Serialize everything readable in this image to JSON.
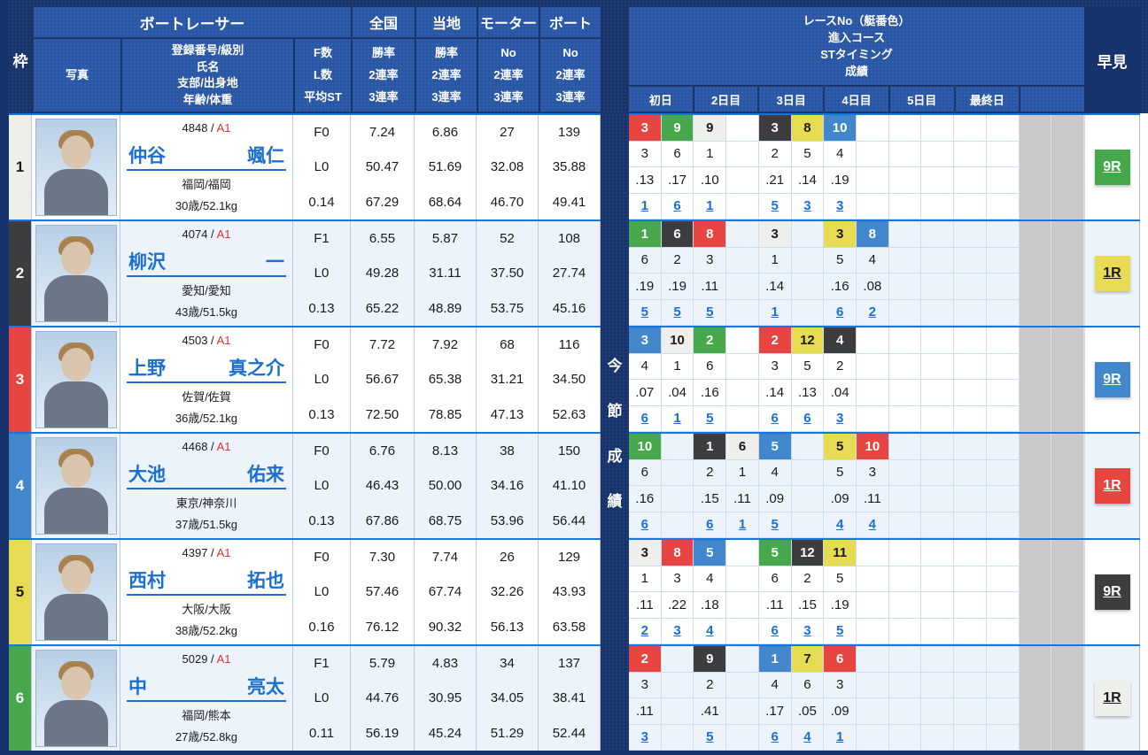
{
  "colors": {
    "navy": "#17336b",
    "header_blue": "#2a57a5",
    "row_alt": "#edf3fb",
    "separator_blue": "#1b74d8",
    "link_blue": "#1a6fd4",
    "gray_cell": "#c9c9c9",
    "class_red": "#e03030",
    "boat": {
      "white": {
        "bg": "#eeeeea",
        "fg": "#1a1a1a"
      },
      "black": {
        "bg": "#3d3d40",
        "fg": "#ffffff"
      },
      "red": {
        "bg": "#e64540",
        "fg": "#ffffff"
      },
      "blue": {
        "bg": "#4287cc",
        "fg": "#ffffff"
      },
      "yellow": {
        "bg": "#e6db52",
        "fg": "#1a1a1a"
      },
      "green": {
        "bg": "#46a84b",
        "fg": "#ffffff"
      }
    }
  },
  "header": {
    "waku": "枠",
    "boat_racer": "ボートレーサー",
    "photo": "写真",
    "racer_info_lines": [
      "登録番号/級別",
      "氏名",
      "支部/出身地",
      "年齢/体重"
    ],
    "fl_lines": [
      "F数",
      "L数",
      "平均ST"
    ],
    "stat_groups": [
      {
        "label": "全国",
        "sub": [
          "勝率",
          "2連率",
          "3連率"
        ]
      },
      {
        "label": "当地",
        "sub": [
          "勝率",
          "2連率",
          "3連率"
        ]
      },
      {
        "label": "モーター",
        "sub": [
          "No",
          "2連率",
          "3連率"
        ]
      },
      {
        "label": "ボート",
        "sub": [
          "No",
          "2連率",
          "3連率"
        ]
      }
    ],
    "race_info_lines": [
      "レースNo（艇番色）",
      "進入コース",
      "STタイミング",
      "成績"
    ],
    "days": [
      "初日",
      "2日目",
      "3日目",
      "4日目",
      "5日目",
      "最終日",
      ""
    ],
    "hayami": "早見",
    "session_label": "今節成績"
  },
  "racers": [
    {
      "waku": "1",
      "waku_color": "white",
      "reg_no": "4848",
      "class_label": "A1",
      "family": "仲谷",
      "given": "颯仁",
      "branch": "福岡/福岡",
      "age_weight": "30歳/52.1kg",
      "fl": [
        "F0",
        "L0",
        "0.14"
      ],
      "stats": [
        [
          "7.24",
          "50.47",
          "67.29"
        ],
        [
          "6.86",
          "51.69",
          "68.64"
        ],
        [
          "27",
          "32.08",
          "46.70"
        ],
        [
          "139",
          "35.88",
          "49.41"
        ]
      ],
      "cells": [
        {
          "race": "3",
          "color": "red",
          "course": "3",
          "st": ".13",
          "result": "1"
        },
        {
          "race": "9",
          "color": "green",
          "course": "6",
          "st": ".17",
          "result": "6"
        },
        {
          "race": "9",
          "color": "white",
          "course": "1",
          "st": ".10",
          "result": "1"
        },
        null,
        {
          "race": "3",
          "color": "black",
          "course": "2",
          "st": ".21",
          "result": "5"
        },
        {
          "race": "8",
          "color": "yellow",
          "course": "5",
          "st": ".14",
          "result": "3"
        },
        {
          "race": "10",
          "color": "blue",
          "course": "4",
          "st": ".19",
          "result": "3"
        },
        null,
        null,
        null,
        null,
        null
      ],
      "hayami": {
        "label": "9R",
        "color": "green"
      }
    },
    {
      "waku": "2",
      "waku_color": "black",
      "reg_no": "4074",
      "class_label": "A1",
      "family": "柳沢",
      "given": "一",
      "branch": "愛知/愛知",
      "age_weight": "43歳/51.5kg",
      "fl": [
        "F1",
        "L0",
        "0.13"
      ],
      "stats": [
        [
          "6.55",
          "49.28",
          "65.22"
        ],
        [
          "5.87",
          "31.11",
          "48.89"
        ],
        [
          "52",
          "37.50",
          "53.75"
        ],
        [
          "108",
          "27.74",
          "45.16"
        ]
      ],
      "cells": [
        {
          "race": "1",
          "color": "green",
          "course": "6",
          "st": ".19",
          "result": "5"
        },
        {
          "race": "6",
          "color": "black",
          "course": "2",
          "st": ".19",
          "result": "5"
        },
        {
          "race": "8",
          "color": "red",
          "course": "3",
          "st": ".11",
          "result": "5"
        },
        null,
        {
          "race": "3",
          "color": "white",
          "course": "1",
          "st": ".14",
          "result": "1"
        },
        null,
        {
          "race": "3",
          "color": "yellow",
          "course": "5",
          "st": ".16",
          "result": "6"
        },
        {
          "race": "8",
          "color": "blue",
          "course": "4",
          "st": ".08",
          "result": "2"
        },
        null,
        null,
        null,
        null
      ],
      "hayami": {
        "label": "1R",
        "color": "yellow"
      }
    },
    {
      "waku": "3",
      "waku_color": "red",
      "reg_no": "4503",
      "class_label": "A1",
      "family": "上野",
      "given": "真之介",
      "branch": "佐賀/佐賀",
      "age_weight": "36歳/52.1kg",
      "fl": [
        "F0",
        "L0",
        "0.13"
      ],
      "stats": [
        [
          "7.72",
          "56.67",
          "72.50"
        ],
        [
          "7.92",
          "65.38",
          "78.85"
        ],
        [
          "68",
          "31.21",
          "47.13"
        ],
        [
          "116",
          "34.50",
          "52.63"
        ]
      ],
      "cells": [
        {
          "race": "3",
          "color": "blue",
          "course": "4",
          "st": ".07",
          "result": "6"
        },
        {
          "race": "10",
          "color": "white",
          "course": "1",
          "st": ".04",
          "result": "1"
        },
        {
          "race": "2",
          "color": "green",
          "course": "6",
          "st": ".16",
          "result": "5"
        },
        null,
        {
          "race": "2",
          "color": "red",
          "course": "3",
          "st": ".14",
          "result": "6"
        },
        {
          "race": "12",
          "color": "yellow",
          "course": "5",
          "st": ".13",
          "result": "6"
        },
        {
          "race": "4",
          "color": "black",
          "course": "2",
          "st": ".04",
          "result": "3"
        },
        null,
        null,
        null,
        null,
        null
      ],
      "hayami": {
        "label": "9R",
        "color": "blue"
      }
    },
    {
      "waku": "4",
      "waku_color": "blue",
      "reg_no": "4468",
      "class_label": "A1",
      "family": "大池",
      "given": "佑来",
      "branch": "東京/神奈川",
      "age_weight": "37歳/51.5kg",
      "fl": [
        "F0",
        "L0",
        "0.13"
      ],
      "stats": [
        [
          "6.76",
          "46.43",
          "67.86"
        ],
        [
          "8.13",
          "50.00",
          "68.75"
        ],
        [
          "38",
          "34.16",
          "53.96"
        ],
        [
          "150",
          "41.10",
          "56.44"
        ]
      ],
      "cells": [
        {
          "race": "10",
          "color": "green",
          "course": "6",
          "st": ".16",
          "result": "6"
        },
        null,
        {
          "race": "1",
          "color": "black",
          "course": "2",
          "st": ".15",
          "result": "6"
        },
        {
          "race": "6",
          "color": "white",
          "course": "1",
          "st": ".11",
          "result": "1"
        },
        {
          "race": "5",
          "color": "blue",
          "course": "4",
          "st": ".09",
          "result": "5"
        },
        null,
        {
          "race": "5",
          "color": "yellow",
          "course": "5",
          "st": ".09",
          "result": "4"
        },
        {
          "race": "10",
          "color": "red",
          "course": "3",
          "st": ".11",
          "result": "4"
        },
        null,
        null,
        null,
        null
      ],
      "hayami": {
        "label": "1R",
        "color": "red"
      }
    },
    {
      "waku": "5",
      "waku_color": "yellow",
      "reg_no": "4397",
      "class_label": "A1",
      "family": "西村",
      "given": "拓也",
      "branch": "大阪/大阪",
      "age_weight": "38歳/52.2kg",
      "fl": [
        "F0",
        "L0",
        "0.16"
      ],
      "stats": [
        [
          "7.30",
          "57.46",
          "76.12"
        ],
        [
          "7.74",
          "67.74",
          "90.32"
        ],
        [
          "26",
          "32.26",
          "56.13"
        ],
        [
          "129",
          "43.93",
          "63.58"
        ]
      ],
      "cells": [
        {
          "race": "3",
          "color": "white",
          "course": "1",
          "st": ".11",
          "result": "2"
        },
        {
          "race": "8",
          "color": "red",
          "course": "3",
          "st": ".22",
          "result": "3"
        },
        {
          "race": "5",
          "color": "blue",
          "course": "4",
          "st": ".18",
          "result": "4"
        },
        null,
        {
          "race": "5",
          "color": "green",
          "course": "6",
          "st": ".11",
          "result": "6"
        },
        {
          "race": "12",
          "color": "black",
          "course": "2",
          "st": ".15",
          "result": "3"
        },
        {
          "race": "11",
          "color": "yellow",
          "course": "5",
          "st": ".19",
          "result": "5"
        },
        null,
        null,
        null,
        null,
        null
      ],
      "hayami": {
        "label": "9R",
        "color": "black"
      }
    },
    {
      "waku": "6",
      "waku_color": "green",
      "reg_no": "5029",
      "class_label": "A1",
      "family": "中",
      "given": "亮太",
      "branch": "福岡/熊本",
      "age_weight": "27歳/52.8kg",
      "fl": [
        "F1",
        "L0",
        "0.11"
      ],
      "stats": [
        [
          "5.79",
          "44.76",
          "56.19"
        ],
        [
          "4.83",
          "30.95",
          "45.24"
        ],
        [
          "34",
          "34.05",
          "51.29"
        ],
        [
          "137",
          "38.41",
          "52.44"
        ]
      ],
      "cells": [
        {
          "race": "2",
          "color": "red",
          "course": "3",
          "st": ".11",
          "result": "3"
        },
        null,
        {
          "race": "9",
          "color": "black",
          "course": "2",
          "st": ".41",
          "result": "5"
        },
        null,
        {
          "race": "1",
          "color": "blue",
          "course": "4",
          "st": ".17",
          "result": "6"
        },
        {
          "race": "7",
          "color": "yellow",
          "course": "6",
          "st": ".05",
          "result": "4"
        },
        {
          "race": "6",
          "color": "red",
          "course": "3",
          "st": ".09",
          "result": "1"
        },
        null,
        null,
        null,
        null,
        null
      ],
      "hayami": {
        "label": "1R",
        "color": "white"
      }
    }
  ]
}
